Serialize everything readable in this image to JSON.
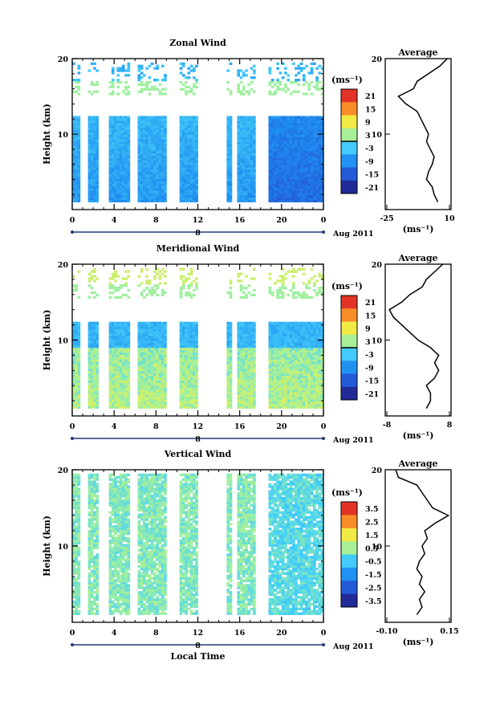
{
  "chart_data": [
    {
      "type": "heatmap",
      "title": "Zonal Wind",
      "ylabel": "Height (km)",
      "ylim": [
        0,
        20
      ],
      "yticks": [
        "10",
        "20"
      ],
      "xlim": [
        0,
        24
      ],
      "xticks": [
        "0",
        "4",
        "8",
        "12",
        "16",
        "20",
        "0"
      ],
      "xsub_label": "8",
      "date_label": "Aug 2011",
      "colorbar": {
        "unit_label": "(ms⁻¹)",
        "range": [
          -24,
          24
        ],
        "ticks": [
          "21",
          "15",
          "9",
          "3",
          "-3",
          "-9",
          "-15",
          "-21"
        ],
        "contour_level": 0
      },
      "gaps": [
        [
          0.8,
          1.5
        ],
        [
          2.6,
          3.5
        ],
        [
          5.4,
          6.2
        ],
        [
          8.9,
          10.2
        ],
        [
          12.0,
          14.8
        ],
        [
          15.2,
          15.8
        ],
        [
          17.6,
          18.8
        ]
      ],
      "profile": {
        "title": "Average",
        "xlim": [
          -25,
          10
        ],
        "xticks": [
          "-25",
          "10"
        ],
        "xlabel": "(ms⁻¹)",
        "yticks": [
          "10",
          "20"
        ],
        "heights": [
          1,
          2,
          3,
          4,
          5,
          6,
          7,
          8,
          9,
          10,
          11,
          12,
          13,
          14,
          15,
          16,
          17,
          18,
          19,
          20
        ],
        "values": [
          3,
          1,
          0,
          -3,
          -2,
          0,
          1,
          -1,
          -3,
          -2,
          -4,
          -6,
          -8,
          -14,
          -18,
          -10,
          -8,
          -2,
          4,
          8
        ]
      }
    },
    {
      "type": "heatmap",
      "title": "Meridional Wind",
      "ylabel": "Height (km)",
      "ylim": [
        0,
        20
      ],
      "yticks": [
        "10",
        "20"
      ],
      "xlim": [
        0,
        24
      ],
      "xticks": [
        "0",
        "4",
        "8",
        "12",
        "16",
        "20",
        "0"
      ],
      "xsub_label": "8",
      "date_label": "Aug 2011",
      "colorbar": {
        "unit_label": "(ms⁻¹)",
        "range": [
          -24,
          24
        ],
        "ticks": [
          "21",
          "15",
          "9",
          "3",
          "-3",
          "-9",
          "-15",
          "-21"
        ],
        "contour_level": 0
      },
      "gaps": [
        [
          0.8,
          1.5
        ],
        [
          2.6,
          3.5
        ],
        [
          5.4,
          6.2
        ],
        [
          8.9,
          10.2
        ],
        [
          12.0,
          14.8
        ],
        [
          15.2,
          15.8
        ],
        [
          17.6,
          18.8
        ]
      ],
      "profile": {
        "title": "Average",
        "xlim": [
          -8,
          8
        ],
        "xticks": [
          "-8",
          "8"
        ],
        "xlabel": "(ms⁻¹)",
        "yticks": [
          "10",
          "20"
        ],
        "heights": [
          1,
          2,
          3,
          4,
          5,
          6,
          7,
          8,
          9,
          10,
          11,
          12,
          13,
          14,
          15,
          16,
          17,
          18,
          19,
          20
        ],
        "values": [
          2,
          3,
          3,
          2,
          4,
          5,
          4,
          5,
          3,
          0,
          -2,
          -4,
          -6,
          -7,
          -4,
          -2,
          1,
          2,
          4,
          6
        ]
      }
    },
    {
      "type": "heatmap",
      "title": "Vertical Wind",
      "ylabel": "Height (km)",
      "ylim": [
        0,
        20
      ],
      "yticks": [
        "10",
        "20"
      ],
      "xlim": [
        0,
        24
      ],
      "xticks": [
        "0",
        "4",
        "8",
        "12",
        "16",
        "20",
        "0"
      ],
      "xsub_label": "8",
      "date_label": "Aug 2011",
      "xlabel": "Local Time",
      "colorbar": {
        "unit_label": "(ms⁻¹)",
        "range": [
          -4,
          4
        ],
        "ticks": [
          "3.5",
          "2.5",
          "1.5",
          "0.5",
          "-0.5",
          "-1.5",
          "-2.5",
          "-3.5"
        ]
      },
      "gaps": [
        [
          0.8,
          1.5
        ],
        [
          2.6,
          3.5
        ],
        [
          5.4,
          6.2
        ],
        [
          8.9,
          10.2
        ],
        [
          12.0,
          14.8
        ],
        [
          15.2,
          15.8
        ],
        [
          17.6,
          18.8
        ]
      ],
      "profile": {
        "title": "Average",
        "xlim": [
          -0.1,
          0.15
        ],
        "xticks": [
          "-0.10",
          "0.15"
        ],
        "xlabel": "(ms⁻¹)",
        "yticks": [
          "10",
          "20"
        ],
        "heights": [
          1,
          2,
          3,
          4,
          5,
          6,
          7,
          8,
          9,
          10,
          11,
          12,
          13,
          14,
          15,
          16,
          17,
          18,
          19,
          20
        ],
        "values": [
          0.02,
          0.04,
          0.03,
          0.05,
          0.03,
          0.04,
          0.02,
          0.03,
          0.05,
          0.04,
          0.06,
          0.05,
          0.09,
          0.14,
          0.08,
          0.06,
          0.04,
          0.02,
          -0.05,
          -0.06
        ]
      }
    }
  ]
}
